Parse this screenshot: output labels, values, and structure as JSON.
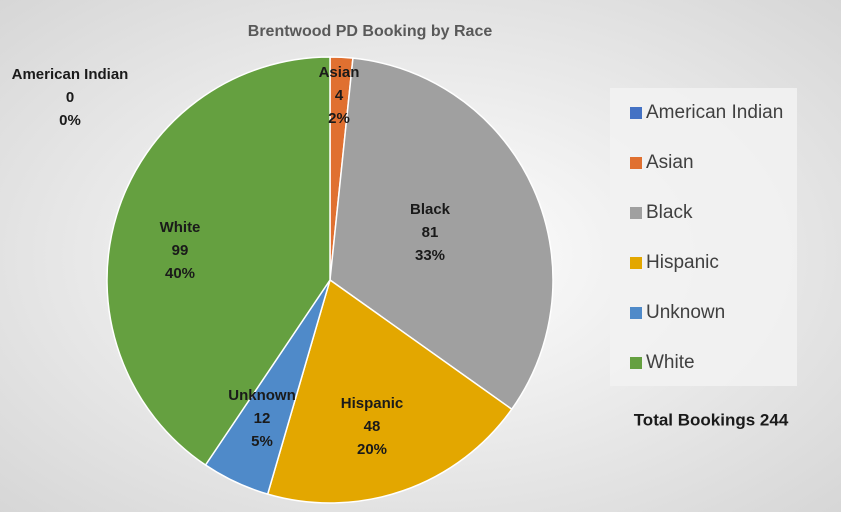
{
  "chart_data": {
    "type": "pie",
    "title": "Brentwood PD Booking by Race",
    "categories": [
      "American Indian",
      "Asian",
      "Black",
      "Hispanic",
      "Unknown",
      "White"
    ],
    "values": [
      0,
      4,
      81,
      48,
      12,
      99
    ],
    "percentages": [
      0,
      2,
      33,
      20,
      5,
      40
    ],
    "percentage_labels": [
      "0%",
      "2%",
      "33%",
      "20%",
      "5%",
      "40%"
    ],
    "colors": [
      "#4472c4",
      "#e07030",
      "#a0a0a0",
      "#e3a700",
      "#4f8ac9",
      "#65a040"
    ],
    "legend": "right",
    "annotation": "Total Bookings 244"
  }
}
